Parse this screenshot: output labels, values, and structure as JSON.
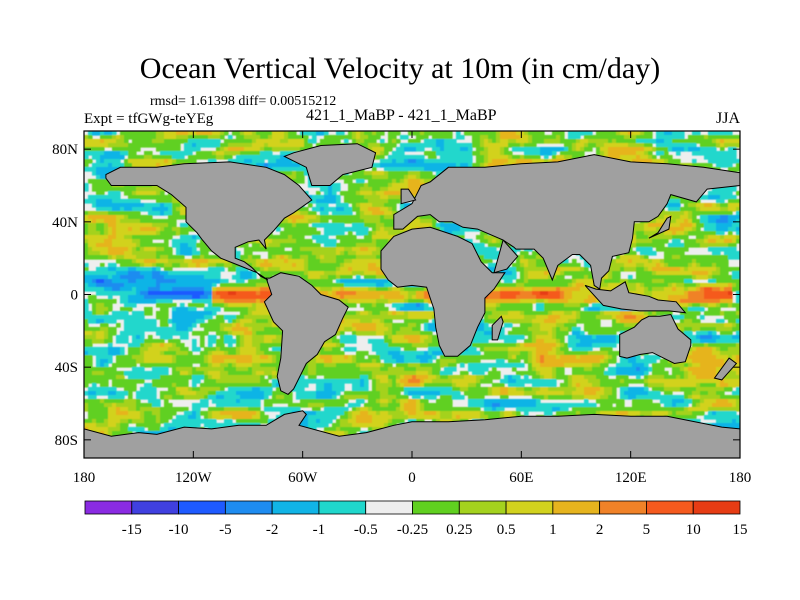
{
  "title": "Ocean Vertical Velocity at 10m (in cm/day)",
  "stats": "rmsd= 1.61398 diff= 0.00515212",
  "left_label": "Expt = tfGWg-teYEg",
  "center_label": "421_1_MaBP - 421_1_MaBP",
  "right_label": "JJA",
  "map": {
    "lat_ticks": [
      {
        "value": 80,
        "label": "80N"
      },
      {
        "value": 40,
        "label": "40N"
      },
      {
        "value": 0,
        "label": "0"
      },
      {
        "value": -40,
        "label": "40S"
      },
      {
        "value": -80,
        "label": "80S"
      }
    ],
    "lon_ticks": [
      {
        "value": -180,
        "label": "180"
      },
      {
        "value": -120,
        "label": "120W"
      },
      {
        "value": -60,
        "label": "60W"
      },
      {
        "value": 0,
        "label": "0"
      },
      {
        "value": 60,
        "label": "60E"
      },
      {
        "value": 120,
        "label": "120E"
      },
      {
        "value": 180,
        "label": "180"
      }
    ],
    "lon_range": [
      -180,
      180
    ],
    "lat_range": [
      -90,
      90
    ]
  },
  "colors": {
    "land": "#a0a0a0",
    "ocean_neutral": "#eeeeee"
  },
  "colorbar": {
    "colors": [
      "#8a2be2",
      "#4040e0",
      "#1e5aff",
      "#1e8cf0",
      "#11b4e6",
      "#20d7cc",
      "#eeeeee",
      "#60d020",
      "#a4d21e",
      "#d2d21e",
      "#e6b41e",
      "#f08228",
      "#f55a1e",
      "#e63c14"
    ],
    "labels": [
      "-15",
      "-10",
      "-5",
      "-2",
      "-1",
      "-0.5",
      "-0.25",
      "0.25",
      "0.5",
      "1",
      "2",
      "5",
      "10",
      "15"
    ]
  }
}
